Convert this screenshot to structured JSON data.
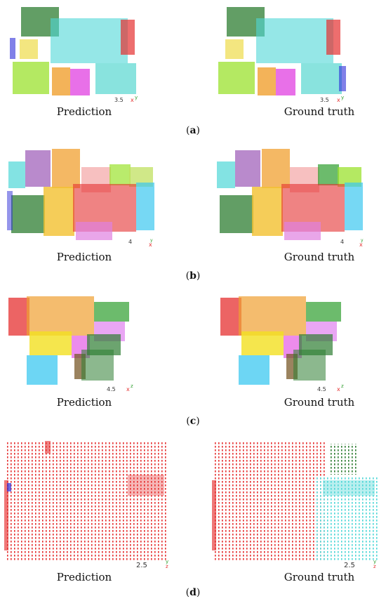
{
  "figure": {
    "rows": [
      {
        "label_open": "(",
        "label_letter": "a",
        "label_close": ")",
        "left_caption": "Prediction",
        "right_caption": "Ground truth",
        "left_scale": "3.5",
        "right_scale": "3.5"
      },
      {
        "label_open": "(",
        "label_letter": "b",
        "label_close": ")",
        "left_caption": "Prediction",
        "right_caption": "Ground truth",
        "left_scale": "4",
        "right_scale": "4"
      },
      {
        "label_open": "(",
        "label_letter": "c",
        "label_close": ")",
        "left_caption": "Prediction",
        "right_caption": "Ground truth",
        "left_scale": "4.5",
        "right_scale": "4.5"
      },
      {
        "label_open": "(",
        "label_letter": "d",
        "label_close": ")",
        "left_caption": "Prediction",
        "right_caption": "Ground truth",
        "left_scale": "2.5",
        "right_scale": "2.5"
      }
    ]
  },
  "palette": {
    "red": "#e53030",
    "green_dark": "#2e7d32",
    "green_light": "#9be22e",
    "cyan": "#4fd7d7",
    "blue": "#2b2bd8",
    "orange": "#f0a030",
    "magenta": "#e040e0",
    "purple": "#9b59b6",
    "yellow": "#f2e020",
    "brown": "#7a5a2a",
    "teal": "#3ad0b0",
    "sky": "#3cc8f0"
  }
}
